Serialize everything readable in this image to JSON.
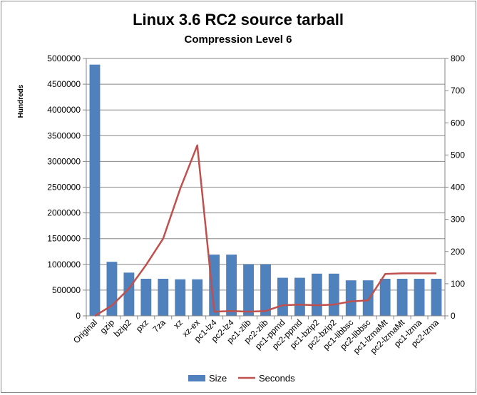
{
  "chart_data": {
    "type": "bar",
    "title": "Linux 3.6 RC2 source tarball",
    "subtitle": "Compression Level 6",
    "ylabel": "Hundreds",
    "categories": [
      "Original",
      "gzip",
      "bzip2",
      "pxz",
      "7za",
      "xz",
      "xz-ex",
      "pc1-lz4",
      "pc2-lz4",
      "pc1-zlib",
      "pc2-zlib",
      "pc1-ppmd",
      "pc2-ppmd",
      "pc1-bzip2",
      "pc2-bzip2",
      "pc1-libbsc",
      "pc2-libbsc",
      "pc1-lzmaMt",
      "pc2-lzmaMt",
      "pc1-lzma",
      "pc2-lzma"
    ],
    "y_left": {
      "min": 0,
      "max": 5000000,
      "ticks": [
        "0",
        "500000",
        "1000000",
        "1500000",
        "2000000",
        "2500000",
        "3000000",
        "3500000",
        "4000000",
        "4500000",
        "5000000"
      ]
    },
    "y_right": {
      "min": 0,
      "max": 800,
      "ticks": [
        "0",
        "100",
        "200",
        "300",
        "400",
        "500",
        "600",
        "700",
        "800"
      ]
    },
    "series": [
      {
        "name": "Size",
        "kind": "bar",
        "axis": "left",
        "color": "#4f81bd",
        "values": [
          4880000,
          1050000,
          840000,
          720000,
          720000,
          710000,
          710000,
          1190000,
          1190000,
          1000000,
          1000000,
          740000,
          740000,
          820000,
          820000,
          690000,
          690000,
          720000,
          720000,
          720000,
          720000
        ]
      },
      {
        "name": "Seconds",
        "kind": "line",
        "axis": "right",
        "color": "#c0504d",
        "values": [
          0,
          32,
          85,
          158,
          240,
          395,
          530,
          13,
          15,
          13,
          15,
          33,
          35,
          33,
          35,
          45,
          48,
          130,
          132,
          132,
          132
        ]
      }
    ],
    "grid": true,
    "legend": "bottom"
  }
}
